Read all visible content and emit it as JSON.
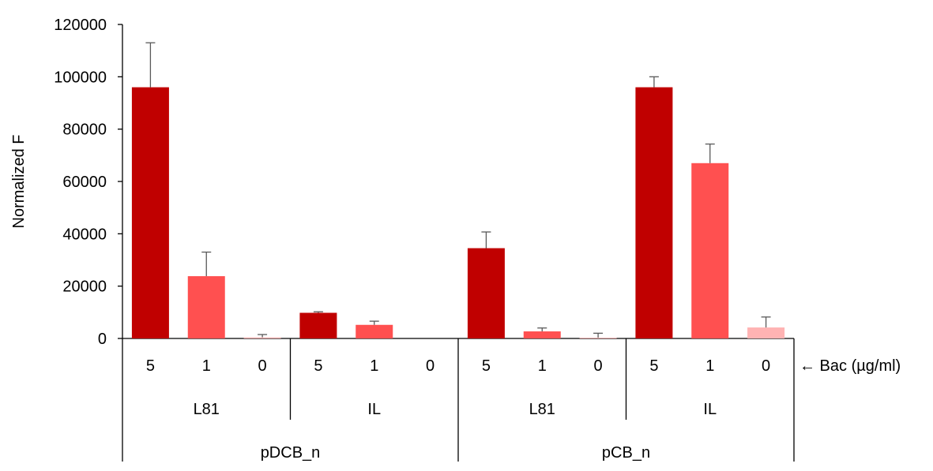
{
  "chart_data": {
    "type": "bar",
    "ylabel": "Normalized F",
    "ylim": [
      0,
      120000
    ],
    "yticks": [
      0,
      20000,
      40000,
      60000,
      80000,
      100000,
      120000
    ],
    "x_annotation": "← Bac (µg/ml)",
    "grid": false,
    "legend": "none",
    "colors": {
      "5": "#c00000",
      "1": "#ff5050",
      "0": "#ffb3b3",
      "error_bar": "#595959",
      "axis": "#000000"
    },
    "groups": [
      {
        "label": "pDCB_n",
        "subgroups": [
          {
            "label": "L81",
            "bars": [
              {
                "bac": "5",
                "value": 96000,
                "error": 17000
              },
              {
                "bac": "1",
                "value": 23800,
                "error": 9200
              },
              {
                "bac": "0",
                "value": 400,
                "error": 1100
              }
            ]
          },
          {
            "label": "IL",
            "bars": [
              {
                "bac": "5",
                "value": 9800,
                "error": 400
              },
              {
                "bac": "1",
                "value": 5200,
                "error": 1400
              },
              {
                "bac": "0",
                "value": 0,
                "error": 0
              }
            ]
          }
        ]
      },
      {
        "label": "pCB_n",
        "subgroups": [
          {
            "label": "L81",
            "bars": [
              {
                "bac": "5",
                "value": 34500,
                "error": 6200
              },
              {
                "bac": "1",
                "value": 2700,
                "error": 1300
              },
              {
                "bac": "0",
                "value": 300,
                "error": 1700
              }
            ]
          },
          {
            "label": "IL",
            "bars": [
              {
                "bac": "5",
                "value": 96000,
                "error": 4000
              },
              {
                "bac": "1",
                "value": 67000,
                "error": 7300
              },
              {
                "bac": "0",
                "value": 4200,
                "error": 4000
              }
            ]
          }
        ]
      }
    ]
  }
}
